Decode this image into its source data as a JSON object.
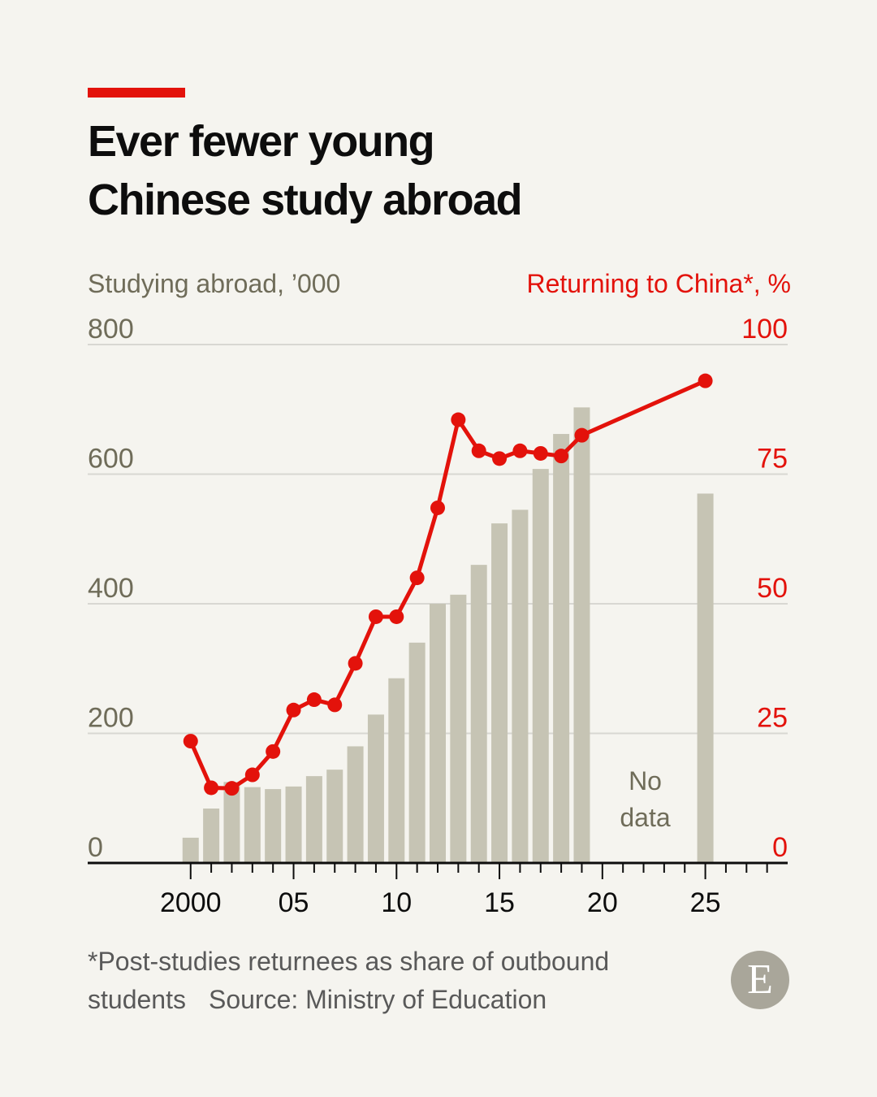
{
  "title_lines": [
    "Ever fewer young",
    "Chinese study abroad"
  ],
  "colors": {
    "bars": "#c6c4b4",
    "line": "#e3120b",
    "left_axis_text": "#6f6c59",
    "grid": "#d8d7d2",
    "axis": "#0d0d0d",
    "background": "#f5f4ef"
  },
  "chart_data": {
    "type": "bar",
    "left_axis": {
      "label": "Studying abroad, ’000",
      "ticks": [
        "0",
        "200",
        "400",
        "600",
        "800"
      ],
      "range": [
        0,
        800
      ]
    },
    "right_axis": {
      "label": "Returning to China*, %",
      "ticks": [
        "0",
        "25",
        "50",
        "75",
        "100"
      ],
      "range": [
        0,
        100
      ]
    },
    "x_axis": {
      "range": [
        1995,
        2029
      ],
      "tick_labels": [
        {
          "year": 2000,
          "label": "2000"
        },
        {
          "year": 2005,
          "label": "05"
        },
        {
          "year": 2010,
          "label": "10"
        },
        {
          "year": 2015,
          "label": "15"
        },
        {
          "year": 2020,
          "label": "20"
        },
        {
          "year": 2025,
          "label": "25"
        }
      ]
    },
    "grid": true,
    "series": [
      {
        "name": "Studying abroad, ’000",
        "type": "bar",
        "axis": "left",
        "points": [
          {
            "year": 2000,
            "value": 39
          },
          {
            "year": 2001,
            "value": 84
          },
          {
            "year": 2002,
            "value": 125
          },
          {
            "year": 2003,
            "value": 117
          },
          {
            "year": 2004,
            "value": 114
          },
          {
            "year": 2005,
            "value": 118
          },
          {
            "year": 2006,
            "value": 134
          },
          {
            "year": 2007,
            "value": 144
          },
          {
            "year": 2008,
            "value": 180
          },
          {
            "year": 2009,
            "value": 229
          },
          {
            "year": 2010,
            "value": 285
          },
          {
            "year": 2011,
            "value": 340
          },
          {
            "year": 2012,
            "value": 400
          },
          {
            "year": 2013,
            "value": 414
          },
          {
            "year": 2014,
            "value": 460
          },
          {
            "year": 2015,
            "value": 524
          },
          {
            "year": 2016,
            "value": 545
          },
          {
            "year": 2017,
            "value": 608
          },
          {
            "year": 2018,
            "value": 662
          },
          {
            "year": 2019,
            "value": 703
          },
          {
            "year": 2025,
            "value": 570
          }
        ]
      },
      {
        "name": "Returning to China*, %",
        "type": "line",
        "axis": "right",
        "points": [
          {
            "year": 2000,
            "value": 23.5
          },
          {
            "year": 2001,
            "value": 14.5
          },
          {
            "year": 2002,
            "value": 14.4
          },
          {
            "year": 2003,
            "value": 17.0
          },
          {
            "year": 2004,
            "value": 21.5
          },
          {
            "year": 2005,
            "value": 29.5
          },
          {
            "year": 2006,
            "value": 31.5
          },
          {
            "year": 2007,
            "value": 30.5
          },
          {
            "year": 2008,
            "value": 38.5
          },
          {
            "year": 2009,
            "value": 47.5
          },
          {
            "year": 2010,
            "value": 47.5
          },
          {
            "year": 2011,
            "value": 55.0
          },
          {
            "year": 2012,
            "value": 68.5
          },
          {
            "year": 2013,
            "value": 85.5
          },
          {
            "year": 2014,
            "value": 79.5
          },
          {
            "year": 2015,
            "value": 78.0
          },
          {
            "year": 2016,
            "value": 79.5
          },
          {
            "year": 2017,
            "value": 79.0
          },
          {
            "year": 2018,
            "value": 78.5
          },
          {
            "year": 2019,
            "value": 82.5
          },
          {
            "year": 2025,
            "value": 93.0
          }
        ]
      }
    ],
    "annotations": [
      {
        "text_lines": [
          "No",
          "data"
        ],
        "year": 2022
      }
    ]
  },
  "footnote": "*Post-studies returnees as share of outbound students",
  "source": "Source: Ministry of Education",
  "logo_letter": "E"
}
